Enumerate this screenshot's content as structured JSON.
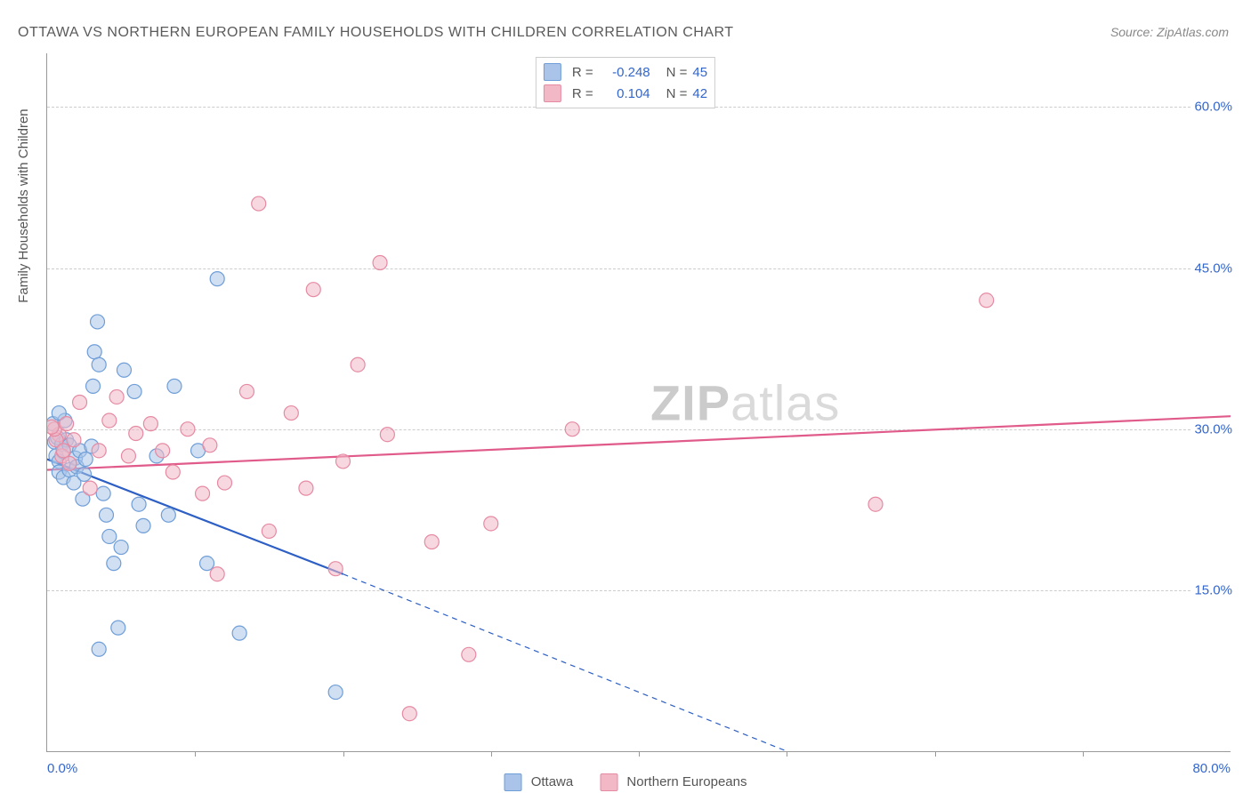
{
  "title": "OTTAWA VS NORTHERN EUROPEAN FAMILY HOUSEHOLDS WITH CHILDREN CORRELATION CHART",
  "source": "Source: ZipAtlas.com",
  "y_axis_title": "Family Households with Children",
  "watermark_bold": "ZIP",
  "watermark_light": "atlas",
  "chart": {
    "type": "scatter",
    "xlim": [
      0,
      80
    ],
    "ylim": [
      0,
      65
    ],
    "x_tick_labels": {
      "min": "0.0%",
      "max": "80.0%"
    },
    "y_grid": [
      {
        "value": 15,
        "label": "15.0%"
      },
      {
        "value": 30,
        "label": "30.0%"
      },
      {
        "value": 45,
        "label": "45.0%"
      },
      {
        "value": 60,
        "label": "60.0%"
      }
    ],
    "x_ticks": [
      10,
      20,
      30,
      40,
      50,
      60,
      70
    ],
    "background_color": "#ffffff",
    "grid_color": "#cccccc",
    "axis_color": "#999999",
    "marker_radius": 8,
    "marker_stroke_width": 1.2,
    "series": [
      {
        "name": "Ottawa",
        "fill": "#a9c4e8",
        "fill_opacity": 0.55,
        "stroke": "#6f9ed8",
        "R": "-0.248",
        "N": "45",
        "trend": {
          "color": "#2d5fc4",
          "width": 2.2,
          "x1": 0,
          "y1": 27.2,
          "solid_x2": 20,
          "solid_y2": 16.5,
          "dash_x2": 50,
          "dash_y2": 0
        },
        "points": [
          [
            0.4,
            30.5
          ],
          [
            0.5,
            28.8
          ],
          [
            0.6,
            27.5
          ],
          [
            0.7,
            29.2
          ],
          [
            0.8,
            27.0
          ],
          [
            0.8,
            26.0
          ],
          [
            1.0,
            28.6
          ],
          [
            1.1,
            25.5
          ],
          [
            1.1,
            27.9
          ],
          [
            1.3,
            29.0
          ],
          [
            1.2,
            30.8
          ],
          [
            0.8,
            31.5
          ],
          [
            1.5,
            26.2
          ],
          [
            1.8,
            25.0
          ],
          [
            1.5,
            28.5
          ],
          [
            1.9,
            27.3
          ],
          [
            2.0,
            26.5
          ],
          [
            2.2,
            28.0
          ],
          [
            2.4,
            23.5
          ],
          [
            2.5,
            25.8
          ],
          [
            2.6,
            27.2
          ],
          [
            3.0,
            28.4
          ],
          [
            3.1,
            34.0
          ],
          [
            3.2,
            37.2
          ],
          [
            3.4,
            40.0
          ],
          [
            3.5,
            36.0
          ],
          [
            3.8,
            24.0
          ],
          [
            4.0,
            22.0
          ],
          [
            4.2,
            20.0
          ],
          [
            4.5,
            17.5
          ],
          [
            5.0,
            19.0
          ],
          [
            5.2,
            35.5
          ],
          [
            5.9,
            33.5
          ],
          [
            6.2,
            23.0
          ],
          [
            6.5,
            21.0
          ],
          [
            7.4,
            27.5
          ],
          [
            8.2,
            22.0
          ],
          [
            8.6,
            34.0
          ],
          [
            10.2,
            28.0
          ],
          [
            10.8,
            17.5
          ],
          [
            11.5,
            44.0
          ],
          [
            13.0,
            11.0
          ],
          [
            4.8,
            11.5
          ],
          [
            19.5,
            5.5
          ],
          [
            3.5,
            9.5
          ]
        ]
      },
      {
        "name": "Northern Europeans",
        "fill": "#f2b8c6",
        "fill_opacity": 0.55,
        "stroke": "#e68aa3",
        "R": "0.104",
        "N": "42",
        "trend": {
          "color": "#e05a8a",
          "width": 2.2,
          "x1": 0,
          "y1": 26.2,
          "solid_x2": 80,
          "solid_y2": 31.2,
          "dash_x2": null,
          "dash_y2": null
        },
        "points": [
          [
            0.8,
            29.5
          ],
          [
            1.0,
            27.5
          ],
          [
            0.6,
            29.0
          ],
          [
            1.1,
            28.0
          ],
          [
            0.5,
            30.0
          ],
          [
            1.3,
            30.5
          ],
          [
            1.5,
            26.8
          ],
          [
            1.8,
            29.0
          ],
          [
            2.2,
            32.5
          ],
          [
            2.9,
            24.5
          ],
          [
            3.5,
            28.0
          ],
          [
            4.2,
            30.8
          ],
          [
            4.7,
            33.0
          ],
          [
            5.5,
            27.5
          ],
          [
            6.0,
            29.6
          ],
          [
            7.0,
            30.5
          ],
          [
            7.8,
            28.0
          ],
          [
            8.5,
            26.0
          ],
          [
            9.5,
            30.0
          ],
          [
            10.5,
            24.0
          ],
          [
            11.0,
            28.5
          ],
          [
            11.5,
            16.5
          ],
          [
            12.0,
            25.0
          ],
          [
            13.5,
            33.5
          ],
          [
            14.3,
            51.0
          ],
          [
            15.0,
            20.5
          ],
          [
            16.5,
            31.5
          ],
          [
            17.5,
            24.5
          ],
          [
            18.0,
            43.0
          ],
          [
            19.5,
            17.0
          ],
          [
            20.0,
            27.0
          ],
          [
            21.0,
            36.0
          ],
          [
            22.5,
            45.5
          ],
          [
            23.0,
            29.5
          ],
          [
            24.5,
            3.5
          ],
          [
            26.0,
            19.5
          ],
          [
            28.5,
            9.0
          ],
          [
            30.0,
            21.2
          ],
          [
            35.5,
            30.0
          ],
          [
            56.0,
            23.0
          ],
          [
            63.5,
            42.0
          ],
          [
            0.3,
            30.2
          ]
        ]
      }
    ],
    "legend_labels": {
      "ottawa": "Ottawa",
      "northern": "Northern Europeans"
    },
    "stat_labels": {
      "R": "R =",
      "N": "N ="
    }
  }
}
